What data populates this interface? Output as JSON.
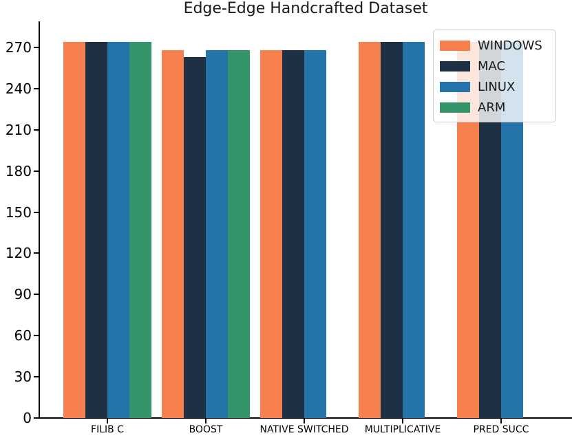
{
  "chart_data": {
    "type": "bar",
    "title": "Edge-Edge Handcrafted Dataset",
    "categories": [
      "FILIB C",
      "BOOST",
      "NATIVE SWITCHED",
      "MULTIPLICATIVE",
      "PRED SUCC"
    ],
    "series": [
      {
        "name": "WINDOWS",
        "color": "#F6814F",
        "values": [
          274,
          268,
          268,
          274,
          274
        ]
      },
      {
        "name": "MAC",
        "color": "#1E3144",
        "values": [
          274,
          263,
          268,
          274,
          274
        ]
      },
      {
        "name": "LINUX",
        "color": "#2574A9",
        "values": [
          274,
          268,
          268,
          274,
          274
        ]
      },
      {
        "name": "ARM",
        "color": "#339569",
        "values": [
          274,
          268,
          null,
          null,
          null
        ]
      }
    ],
    "yticks": [
      0,
      30,
      60,
      90,
      120,
      150,
      180,
      210,
      240,
      270
    ],
    "ylim": [
      0,
      289
    ],
    "xlabel": "",
    "ylabel": "",
    "grid": false,
    "legend_position": "upper right",
    "legend_entries": [
      "WINDOWS",
      "MAC",
      "LINUX",
      "ARM"
    ]
  }
}
